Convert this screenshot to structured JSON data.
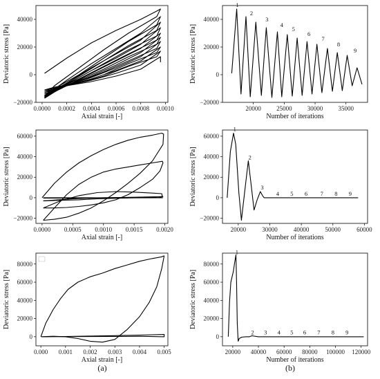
{
  "captions": [
    "(a)",
    "(b)"
  ],
  "chart_data": [
    {
      "type": "line",
      "xlabel": "Axial strain [-]",
      "ylabel": "Deviatoric stress [Pa]",
      "xlim": [
        -5e-05,
        0.00102
      ],
      "ylim": [
        -20000,
        50000
      ],
      "xticks": [
        0.0,
        0.0002,
        0.0004,
        0.0006,
        0.0008,
        0.001
      ],
      "xtick_labels": [
        "0.0000",
        "0.0002",
        "0.0004",
        "0.0006",
        "0.0008",
        "0.0010"
      ],
      "yticks": [
        -20000,
        0,
        20000,
        40000
      ],
      "ytick_labels": [
        "−20000",
        "0",
        "20000",
        "40000"
      ],
      "grid": false,
      "series": [
        {
          "x": [
            2e-05,
            0.0002,
            0.0004,
            0.0006,
            0.0008,
            0.00093,
            0.00096,
            0.00093,
            0.0007,
            0.0005,
            0.0003,
            0.0001,
            2e-05
          ],
          "y": [
            1000,
            12000,
            23000,
            32000,
            40000,
            46000,
            47500,
            42000,
            30000,
            18000,
            5000,
            -8000,
            -15500
          ]
        },
        {
          "x": [
            2e-05,
            0.0002,
            0.0004,
            0.0006,
            0.0008,
            0.00096,
            0.00093,
            0.0007,
            0.0005,
            0.0003,
            0.0001,
            2e-05
          ],
          "y": [
            -15500,
            -4000,
            8000,
            19000,
            30000,
            42000,
            36000,
            24000,
            12000,
            0,
            -10000,
            -16500
          ]
        },
        {
          "x": [
            2e-05,
            0.0002,
            0.0004,
            0.0006,
            0.0008,
            0.00096,
            0.00093,
            0.0007,
            0.0005,
            0.0003,
            0.0001,
            2e-05
          ],
          "y": [
            -16500,
            -6000,
            5000,
            15000,
            25000,
            38000,
            32000,
            21000,
            10000,
            -1000,
            -11000,
            -17000
          ]
        },
        {
          "x": [
            2e-05,
            0.0002,
            0.0004,
            0.0006,
            0.0008,
            0.00096,
            0.00093,
            0.0007,
            0.0005,
            0.0003,
            0.0001,
            2e-05
          ],
          "y": [
            -17000,
            -7000,
            3000,
            12000,
            22000,
            34000,
            28000,
            18000,
            8000,
            -2000,
            -11000,
            -16000
          ]
        },
        {
          "x": [
            2e-05,
            0.0002,
            0.0004,
            0.0006,
            0.0008,
            0.00096,
            0.00093,
            0.0007,
            0.0005,
            0.0003,
            0.0001,
            2e-05
          ],
          "y": [
            -16000,
            -8000,
            1000,
            10000,
            19000,
            30000,
            25000,
            15000,
            6000,
            -3000,
            -11000,
            -15000
          ]
        },
        {
          "x": [
            2e-05,
            0.0002,
            0.0004,
            0.0006,
            0.0008,
            0.00096,
            0.00093,
            0.0007,
            0.0005,
            0.0003,
            0.0001,
            2e-05
          ],
          "y": [
            -15000,
            -8000,
            -1000,
            7000,
            16000,
            27000,
            22000,
            13000,
            4000,
            -4000,
            -11000,
            -14000
          ]
        },
        {
          "x": [
            2e-05,
            0.0002,
            0.0004,
            0.0006,
            0.0008,
            0.00096,
            0.00093,
            0.0007,
            0.0005,
            0.0003,
            0.0001,
            2e-05
          ],
          "y": [
            -14000,
            -8000,
            -2000,
            5000,
            13000,
            24000,
            19000,
            10000,
            2000,
            -5000,
            -10000,
            -13000
          ]
        },
        {
          "x": [
            2e-05,
            0.0002,
            0.0004,
            0.0006,
            0.0008,
            0.00096,
            0.00093,
            0.0007,
            0.0005,
            0.0003,
            0.0001,
            2e-05
          ],
          "y": [
            -13000,
            -8000,
            -3000,
            3000,
            10000,
            20000,
            16000,
            8000,
            0,
            -6000,
            -9000,
            -12000
          ]
        },
        {
          "x": [
            2e-05,
            0.0002,
            0.0004,
            0.0006,
            0.0008,
            0.00096,
            0.00093,
            0.0007,
            0.0005,
            0.0003,
            0.0001,
            2e-05
          ],
          "y": [
            -12000,
            -8000,
            -4000,
            1000,
            7000,
            17000,
            13000,
            6000,
            -1000,
            -6000,
            -9000,
            -11000
          ]
        },
        {
          "x": [
            2e-05,
            0.0002,
            0.0004,
            0.0006,
            0.0008,
            0.00096,
            0.00096
          ],
          "y": [
            -11000,
            -8000,
            -5000,
            -1000,
            4000,
            13000,
            9000
          ]
        }
      ]
    },
    {
      "type": "line",
      "xlabel": "Number of iterations",
      "ylabel": "Deviatoric stress [Pa]",
      "xlim": [
        15000,
        38500
      ],
      "ylim": [
        -20000,
        50000
      ],
      "xticks": [
        20000,
        25000,
        30000,
        35000
      ],
      "xtick_labels": [
        "20000",
        "25000",
        "30000",
        "35000"
      ],
      "yticks": [
        -20000,
        0,
        20000,
        40000
      ],
      "ytick_labels": [
        "−20000",
        "0",
        "20000",
        "40000"
      ],
      "grid": false,
      "series": [
        {
          "x": [
            16500,
            17300,
            18000,
            18800,
            19500,
            20400,
            21300,
            22100,
            23000,
            23900,
            24600,
            25500,
            26300,
            27100,
            27900,
            28700,
            29500,
            30300,
            31100,
            32000,
            32800,
            33600,
            34400,
            35200,
            36000,
            36800,
            37600
          ],
          "y": [
            1000,
            47500,
            -14000,
            42000,
            -16000,
            38000,
            -15000,
            34000,
            -16500,
            31000,
            -16000,
            29000,
            -15500,
            26500,
            -15000,
            24000,
            -14000,
            22000,
            -13000,
            19000,
            -12000,
            16000,
            -11500,
            14000,
            -8000,
            5000,
            -7000
          ]
        }
      ],
      "annotations": [
        {
          "text": "1",
          "x": 17400,
          "y": 49000
        },
        {
          "text": "2",
          "x": 19700,
          "y": 43000
        },
        {
          "text": "3",
          "x": 22200,
          "y": 38500
        },
        {
          "text": "4",
          "x": 24600,
          "y": 34500
        },
        {
          "text": "5",
          "x": 26500,
          "y": 31500
        },
        {
          "text": "6",
          "x": 29000,
          "y": 28000
        },
        {
          "text": "7",
          "x": 31300,
          "y": 24500
        },
        {
          "text": "8",
          "x": 33800,
          "y": 20500
        },
        {
          "text": "9",
          "x": 36500,
          "y": 16000
        }
      ]
    },
    {
      "type": "line",
      "xlabel": "Axial strain [-]",
      "ylabel": "Deviatoric stress [Pa]",
      "xlim": [
        -0.0001,
        0.00205
      ],
      "ylim": [
        -25000,
        66000
      ],
      "xticks": [
        0.0,
        0.0005,
        0.001,
        0.0015,
        0.002
      ],
      "xtick_labels": [
        "0.0000",
        "0.0005",
        "0.0010",
        "0.0015",
        "0.0020"
      ],
      "yticks": [
        -20000,
        0,
        20000,
        40000,
        60000
      ],
      "ytick_labels": [
        "−20000",
        "0",
        "20000",
        "40000",
        "60000"
      ],
      "grid": false,
      "series": [
        {
          "x": [
            0.0,
            0.0002,
            0.0004,
            0.0006,
            0.0008,
            0.001,
            0.0012,
            0.0014,
            0.0016,
            0.0018,
            0.00195,
            0.00198,
            0.00197,
            0.0018,
            0.0016,
            0.0014,
            0.0012,
            0.001,
            0.0008,
            0.0006,
            0.0004,
            0.0002,
            2e-05
          ],
          "y": [
            0,
            14000,
            25000,
            34000,
            41000,
            47000,
            52000,
            56000,
            59000,
            61000,
            63000,
            62000,
            52000,
            36000,
            24000,
            14000,
            5000,
            -3000,
            -10000,
            -15000,
            -19000,
            -21000,
            -22000
          ]
        },
        {
          "x": [
            2e-05,
            0.0002,
            0.0004,
            0.0006,
            0.0008,
            0.001,
            0.0012,
            0.0014,
            0.0016,
            0.0018,
            0.00196,
            0.00197,
            0.00192,
            0.0018,
            0.0016,
            0.0014,
            0.0012,
            0.001,
            0.0008,
            0.0006,
            0.0004,
            0.0002,
            2e-05
          ],
          "y": [
            -22000,
            -10000,
            3000,
            13000,
            20000,
            25000,
            28000,
            30000,
            32000,
            34000,
            35500,
            34000,
            26000,
            18000,
            10000,
            3000,
            -2000,
            -5000,
            -7000,
            -8500,
            -9500,
            -10000,
            -10000
          ]
        },
        {
          "x": [
            2e-05,
            0.0003,
            0.0006,
            0.0009,
            0.0012,
            0.0015,
            0.0018,
            0.00195,
            0.00196,
            0.0018,
            0.0015,
            0.0012,
            0.0009,
            0.0006,
            0.0003,
            2e-05
          ],
          "y": [
            -10000,
            -3000,
            2000,
            5000,
            6000,
            5500,
            4500,
            4000,
            1000,
            500,
            0,
            -500,
            -1000,
            -2000,
            -2500,
            -3000
          ]
        },
        {
          "x": [
            2e-05,
            0.0005,
            0.001,
            0.0015,
            0.0019,
            0.00197,
            0.0019,
            0.0015,
            0.001,
            0.0005,
            2e-05
          ],
          "y": [
            -3000,
            -1000,
            0,
            500,
            1000,
            1200,
            0,
            -100,
            -200,
            -300,
            -400
          ]
        },
        {
          "x": [
            2e-05,
            0.0005,
            0.001,
            0.0015,
            0.00197
          ],
          "y": [
            0,
            0,
            0,
            0,
            0
          ]
        }
      ]
    },
    {
      "type": "line",
      "xlabel": "Number of iterations",
      "ylabel": "Deviatoric stress [Pa]",
      "xlim": [
        15000,
        61000
      ],
      "ylim": [
        -25000,
        66000
      ],
      "xticks": [
        20000,
        30000,
        40000,
        50000,
        60000
      ],
      "xtick_labels": [
        "20000",
        "30000",
        "40000",
        "50000",
        "60000"
      ],
      "yticks": [
        -20000,
        0,
        20000,
        40000,
        60000
      ],
      "ytick_labels": [
        "−20000",
        "0",
        "20000",
        "40000",
        "60000"
      ],
      "grid": false,
      "series": [
        {
          "x": [
            16500,
            17500,
            18500,
            19200,
            20200,
            21000,
            22000,
            23200,
            24000,
            25000,
            26000,
            27000,
            27700,
            28200,
            30000,
            35000,
            40000,
            45000,
            50000,
            55000,
            58000
          ],
          "y": [
            0,
            45000,
            63000,
            52000,
            5000,
            -22000,
            5000,
            36000,
            15000,
            -12000,
            -2000,
            6000,
            2000,
            0,
            0,
            0,
            0,
            0,
            0,
            0,
            0
          ]
        }
      ],
      "annotations": [
        {
          "text": "1",
          "x": 18900,
          "y": 65000
        },
        {
          "text": "2",
          "x": 23700,
          "y": 37500
        },
        {
          "text": "3",
          "x": 27600,
          "y": 8000
        },
        {
          "text": "4",
          "x": 32500,
          "y": 2000
        },
        {
          "text": "5",
          "x": 37000,
          "y": 2000
        },
        {
          "text": "6",
          "x": 41500,
          "y": 2000
        },
        {
          "text": "7",
          "x": 46500,
          "y": 2000
        },
        {
          "text": "8",
          "x": 51000,
          "y": 2000
        },
        {
          "text": "9",
          "x": 55500,
          "y": 2000
        }
      ]
    },
    {
      "type": "line",
      "xlabel": "Axial strain [-]",
      "ylabel": "Deviatoric stress [Pa]",
      "xlim": [
        -0.0002,
        0.00515
      ],
      "ylim": [
        -10000,
        92000
      ],
      "xticks": [
        0.0,
        0.001,
        0.002,
        0.003,
        0.004,
        0.005
      ],
      "xtick_labels": [
        "0.000",
        "0.001",
        "0.002",
        "0.003",
        "0.004",
        "0.005"
      ],
      "yticks": [
        0,
        20000,
        40000,
        60000,
        80000
      ],
      "ytick_labels": [
        "0",
        "20000",
        "40000",
        "60000",
        "80000"
      ],
      "grid": false,
      "has_legend_box": true,
      "series": [
        {
          "x": [
            0.0,
            0.0002,
            0.0005,
            0.0008,
            0.0011,
            0.0015,
            0.002,
            0.0025,
            0.003,
            0.0035,
            0.004,
            0.0045,
            0.0049,
            0.005,
            0.0049,
            0.0047,
            0.0044,
            0.004,
            0.0035,
            0.003,
            0.0025,
            0.002,
            0.0015,
            0.001,
            0.0005,
            2e-05
          ],
          "y": [
            0,
            15000,
            30000,
            42000,
            52000,
            60000,
            66000,
            70000,
            75000,
            79000,
            83000,
            86000,
            88000,
            89000,
            75000,
            55000,
            38000,
            22000,
            8000,
            -3000,
            -6000,
            -5000,
            -2000,
            0,
            500,
            0
          ]
        },
        {
          "x": [
            2e-05,
            0.001,
            0.002,
            0.003,
            0.004,
            0.005,
            0.005,
            0.004,
            0.003,
            0.002,
            0.001,
            2e-05
          ],
          "y": [
            0,
            300,
            700,
            1200,
            1800,
            2500,
            0,
            500,
            300,
            200,
            100,
            0
          ]
        }
      ]
    },
    {
      "type": "line",
      "xlabel": "Number of iterations",
      "ylabel": "Deviatoric stress [Pa]",
      "xlim": [
        12000,
        125000
      ],
      "ylim": [
        -10000,
        92000
      ],
      "xticks": [
        20000,
        40000,
        60000,
        80000,
        100000,
        120000
      ],
      "xtick_labels": [
        "20000",
        "40000",
        "60000",
        "80000",
        "100000",
        "120000"
      ],
      "yticks": [
        0,
        20000,
        40000,
        60000,
        80000
      ],
      "ytick_labels": [
        "0",
        "20000",
        "40000",
        "60000",
        "80000"
      ],
      "grid": false,
      "series": [
        {
          "x": [
            16500,
            17500,
            18500,
            19500,
            20500,
            21500,
            22500,
            23000,
            23500,
            24200,
            25000,
            27000,
            30000,
            33000,
            35000,
            40000,
            50000,
            60000,
            70000,
            80000,
            90000,
            100000,
            110000,
            118000,
            122000
          ],
          "y": [
            0,
            38000,
            60000,
            66000,
            72000,
            82000,
            90000,
            60000,
            15000,
            -5000,
            -2000,
            -500,
            0,
            0,
            1000,
            0,
            0,
            0,
            0,
            0,
            0,
            0,
            0,
            0,
            0
          ]
        }
      ],
      "annotations": [
        {
          "text": "1",
          "x": 23200,
          "y": 91000
        },
        {
          "text": "2",
          "x": 35500,
          "y": 2500
        },
        {
          "text": "3",
          "x": 45500,
          "y": 2500
        },
        {
          "text": "4",
          "x": 56000,
          "y": 2500
        },
        {
          "text": "5",
          "x": 66000,
          "y": 2500
        },
        {
          "text": "6",
          "x": 76000,
          "y": 2500
        },
        {
          "text": "7",
          "x": 87000,
          "y": 2500
        },
        {
          "text": "8",
          "x": 98000,
          "y": 2500
        },
        {
          "text": "9",
          "x": 109000,
          "y": 2500
        }
      ]
    }
  ]
}
